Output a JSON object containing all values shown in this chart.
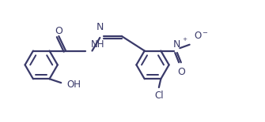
{
  "background": "#ffffff",
  "line_color": "#3a3a6a",
  "line_width": 1.6,
  "text_color": "#3a3a6a",
  "font_size": 8.5,
  "figsize": [
    3.35,
    1.55
  ],
  "dpi": 100,
  "xlim": [
    0.0,
    6.8
  ],
  "ylim": [
    -0.7,
    2.0
  ]
}
